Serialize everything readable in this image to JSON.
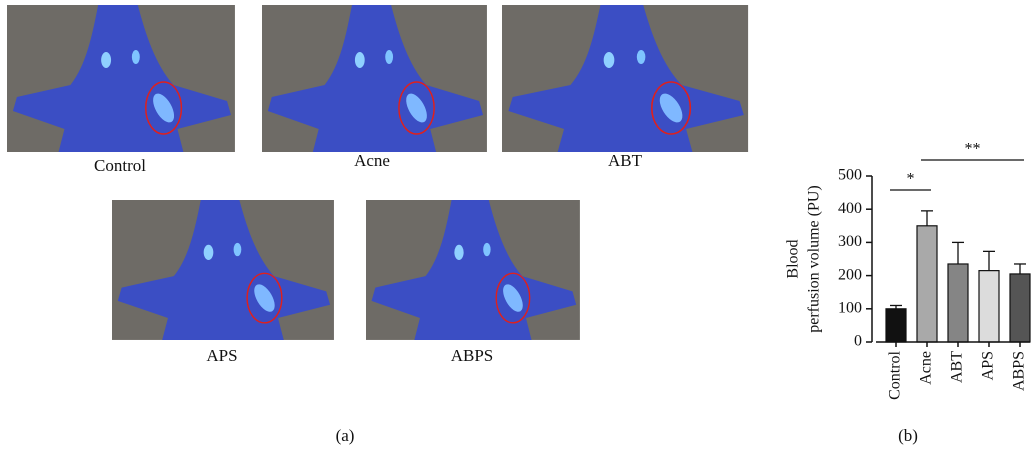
{
  "images": [
    "Control",
    "Acne",
    "ABT",
    "APS",
    "ABPS"
  ],
  "panels": [
    "(a)",
    "(b)"
  ],
  "chart_data": {
    "type": "bar",
    "ylabel": [
      "Blood",
      "perfusion volume (PU)"
    ],
    "categories": [
      "Control",
      "Acne",
      "ABT",
      "APS",
      "ABPS"
    ],
    "values": [
      100,
      350,
      235,
      215,
      205
    ],
    "errors": [
      10,
      45,
      65,
      58,
      30
    ],
    "colors": [
      "#111111",
      "#a9a9a9",
      "#858585",
      "#dcdcdc",
      "#555555"
    ],
    "ylim": [
      0,
      500
    ],
    "yticks": [
      0,
      100,
      200,
      300,
      400,
      500
    ],
    "annotations": [
      "*",
      "**"
    ]
  }
}
